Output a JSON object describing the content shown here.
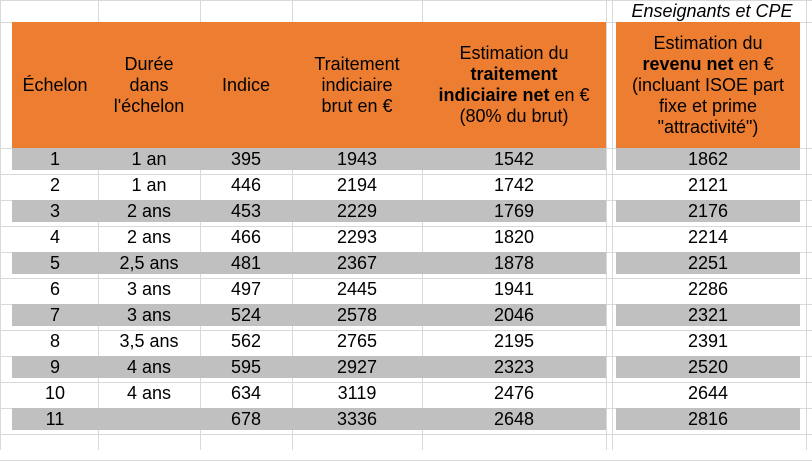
{
  "caption": "Enseignants et CPE",
  "headers": {
    "echelon": "Échelon",
    "duree_1": "Durée",
    "duree_2": "dans",
    "duree_3": "l'échelon",
    "indice": "Indice",
    "brut_1": "Traitement",
    "brut_2": "indiciaire",
    "brut_3": "brut en €",
    "net_1": "Estimation du",
    "net_2": "traitement",
    "net_3": "indiciaire net",
    "net_3b": " en €",
    "net_4": "(80% du brut)",
    "rev_1": "Estimation du",
    "rev_2": "revenu net",
    "rev_2b": " en €",
    "rev_3": "(incluant ISOE part",
    "rev_4": "fixe et prime",
    "rev_5": "\"attractivité\")"
  },
  "rows": [
    {
      "echelon": "1",
      "duree": "1 an",
      "indice": "395",
      "brut": "1943",
      "net": "1542",
      "revenu": "1862"
    },
    {
      "echelon": "2",
      "duree": "1 an",
      "indice": "446",
      "brut": "2194",
      "net": "1742",
      "revenu": "2121"
    },
    {
      "echelon": "3",
      "duree": "2 ans",
      "indice": "453",
      "brut": "2229",
      "net": "1769",
      "revenu": "2176"
    },
    {
      "echelon": "4",
      "duree": "2 ans",
      "indice": "466",
      "brut": "2293",
      "net": "1820",
      "revenu": "2214"
    },
    {
      "echelon": "5",
      "duree": "2,5 ans",
      "indice": "481",
      "brut": "2367",
      "net": "1878",
      "revenu": "2251"
    },
    {
      "echelon": "6",
      "duree": "3 ans",
      "indice": "497",
      "brut": "2445",
      "net": "1941",
      "revenu": "2286"
    },
    {
      "echelon": "7",
      "duree": "3 ans",
      "indice": "524",
      "brut": "2578",
      "net": "2046",
      "revenu": "2321"
    },
    {
      "echelon": "8",
      "duree": "3,5 ans",
      "indice": "562",
      "brut": "2765",
      "net": "2195",
      "revenu": "2391"
    },
    {
      "echelon": "9",
      "duree": "4 ans",
      "indice": "595",
      "brut": "2927",
      "net": "2323",
      "revenu": "2520"
    },
    {
      "echelon": "10",
      "duree": "4 ans",
      "indice": "634",
      "brut": "3119",
      "net": "2476",
      "revenu": "2644"
    },
    {
      "echelon": "11",
      "duree": "",
      "indice": "678",
      "brut": "3336",
      "net": "2648",
      "revenu": "2816"
    }
  ],
  "colors": {
    "header_fill": "#ed7d31",
    "band_fill": "#c0c0c0",
    "gridline": "#d9d9d9"
  }
}
